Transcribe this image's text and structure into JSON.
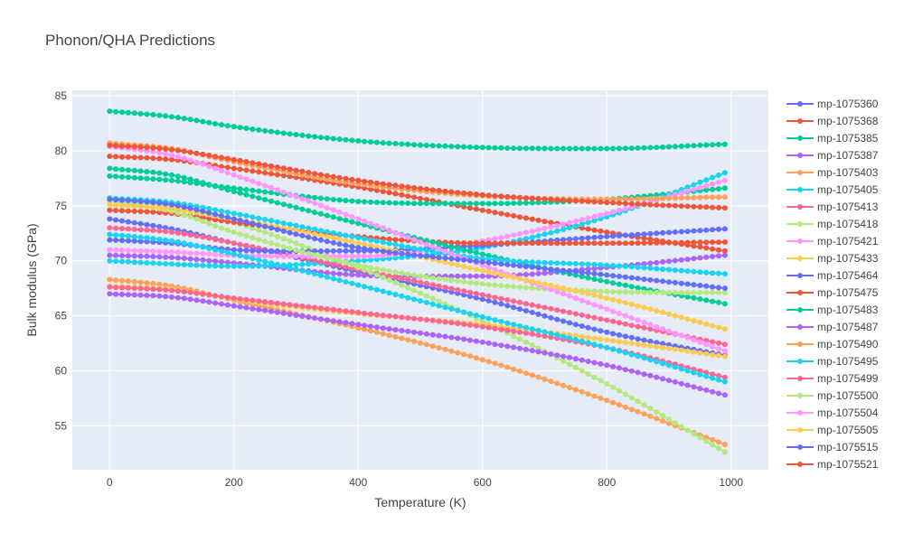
{
  "chart_data": {
    "type": "line",
    "title": "Phonon/QHA Predictions",
    "xlabel": "Temperature (K)",
    "ylabel": "Bulk modulus (GPa)",
    "xlim": [
      -60,
      1060
    ],
    "ylim": [
      51,
      85.5
    ],
    "xticks": [
      0,
      200,
      400,
      600,
      800,
      1000
    ],
    "xtick_labels": [
      "0",
      "200",
      "400",
      "600",
      "800",
      "1000"
    ],
    "yticks": [
      55,
      60,
      65,
      70,
      75,
      80,
      85
    ],
    "ytick_labels": [
      "55",
      "60",
      "65",
      "70",
      "75",
      "80",
      "85"
    ],
    "grid": true,
    "legend_position": "right",
    "x_start": 0,
    "x_step": 10,
    "num_points": 100,
    "series": [
      {
        "name": "mp-1075360",
        "color": "#636efa",
        "anchors": [
          [
            0,
            73.8
          ],
          [
            100,
            72.9
          ],
          [
            200,
            71.6
          ],
          [
            400,
            69.0
          ],
          [
            600,
            66.5
          ],
          [
            800,
            63.5
          ],
          [
            990,
            61.4
          ]
        ]
      },
      {
        "name": "mp-1075368",
        "color": "#ef553b",
        "anchors": [
          [
            0,
            79.5
          ],
          [
            100,
            79.2
          ],
          [
            200,
            78.4
          ],
          [
            400,
            76.7
          ],
          [
            600,
            74.6
          ],
          [
            800,
            72.6
          ],
          [
            990,
            70.9
          ]
        ]
      },
      {
        "name": "mp-1075385",
        "color": "#00cc96",
        "anchors": [
          [
            0,
            77.7
          ],
          [
            100,
            77.3
          ],
          [
            200,
            76.6
          ],
          [
            400,
            75.4
          ],
          [
            600,
            75.2
          ],
          [
            800,
            75.6
          ],
          [
            990,
            76.6
          ]
        ]
      },
      {
        "name": "mp-1075387",
        "color": "#ab63fa",
        "anchors": [
          [
            0,
            70.5
          ],
          [
            100,
            70.3
          ],
          [
            200,
            69.8
          ],
          [
            400,
            68.7
          ],
          [
            600,
            68.6
          ],
          [
            800,
            69.4
          ],
          [
            990,
            70.5
          ]
        ]
      },
      {
        "name": "mp-1075403",
        "color": "#ffa15a",
        "anchors": [
          [
            0,
            68.3
          ],
          [
            100,
            67.7
          ],
          [
            200,
            66.4
          ],
          [
            400,
            63.9
          ],
          [
            600,
            61.0
          ],
          [
            800,
            57.3
          ],
          [
            990,
            53.3
          ]
        ]
      },
      {
        "name": "mp-1075405",
        "color": "#19d3f3",
        "anchors": [
          [
            0,
            70.0
          ],
          [
            100,
            69.7
          ],
          [
            200,
            69.5
          ],
          [
            400,
            70.0
          ],
          [
            600,
            71.2
          ],
          [
            800,
            74.0
          ],
          [
            990,
            78.0
          ]
        ]
      },
      {
        "name": "mp-1075413",
        "color": "#ff6692",
        "anchors": [
          [
            0,
            73.0
          ],
          [
            100,
            72.6
          ],
          [
            200,
            71.6
          ],
          [
            400,
            69.2
          ],
          [
            600,
            66.9
          ],
          [
            800,
            64.6
          ],
          [
            990,
            62.4
          ]
        ]
      },
      {
        "name": "mp-1075418",
        "color": "#b6e880",
        "anchors": [
          [
            0,
            75.4
          ],
          [
            100,
            74.9
          ],
          [
            200,
            73.5
          ],
          [
            400,
            69.4
          ],
          [
            600,
            64.5
          ],
          [
            800,
            58.8
          ],
          [
            990,
            52.6
          ]
        ]
      },
      {
        "name": "mp-1075421",
        "color": "#ff97ff",
        "anchors": [
          [
            0,
            71.0
          ],
          [
            100,
            70.8
          ],
          [
            200,
            70.5
          ],
          [
            400,
            70.4
          ],
          [
            600,
            71.8
          ],
          [
            800,
            74.3
          ],
          [
            990,
            77.3
          ]
        ]
      },
      {
        "name": "mp-1075433",
        "color": "#fecb52",
        "anchors": [
          [
            0,
            67.7
          ],
          [
            100,
            67.4
          ],
          [
            200,
            66.5
          ],
          [
            400,
            65.2
          ],
          [
            600,
            64.2
          ],
          [
            800,
            62.8
          ],
          [
            990,
            61.3
          ]
        ]
      },
      {
        "name": "mp-1075464",
        "color": "#636efa",
        "anchors": [
          [
            0,
            71.9
          ],
          [
            100,
            71.6
          ],
          [
            200,
            71.0
          ],
          [
            400,
            70.9
          ],
          [
            600,
            71.4
          ],
          [
            800,
            72.2
          ],
          [
            990,
            72.9
          ]
        ]
      },
      {
        "name": "mp-1075475",
        "color": "#ef553b",
        "anchors": [
          [
            0,
            74.6
          ],
          [
            100,
            74.3
          ],
          [
            200,
            73.5
          ],
          [
            400,
            72.2
          ],
          [
            600,
            71.6
          ],
          [
            800,
            71.6
          ],
          [
            990,
            71.7
          ]
        ]
      },
      {
        "name": "mp-1075483",
        "color": "#00cc96",
        "anchors": [
          [
            0,
            78.4
          ],
          [
            100,
            77.8
          ],
          [
            200,
            76.3
          ],
          [
            400,
            73.4
          ],
          [
            600,
            70.6
          ],
          [
            800,
            68.1
          ],
          [
            990,
            66.1
          ]
        ]
      },
      {
        "name": "mp-1075487",
        "color": "#ab63fa",
        "anchors": [
          [
            0,
            67.0
          ],
          [
            100,
            66.7
          ],
          [
            200,
            65.9
          ],
          [
            400,
            64.2
          ],
          [
            600,
            62.6
          ],
          [
            800,
            60.5
          ],
          [
            990,
            57.8
          ]
        ]
      },
      {
        "name": "mp-1075490",
        "color": "#ffa15a",
        "anchors": [
          [
            0,
            80.7
          ],
          [
            100,
            80.2
          ],
          [
            200,
            79.0
          ],
          [
            400,
            77.0
          ],
          [
            600,
            75.9
          ],
          [
            800,
            75.6
          ],
          [
            990,
            75.8
          ]
        ]
      },
      {
        "name": "mp-1075495",
        "color": "#19d3f3",
        "anchors": [
          [
            0,
            75.7
          ],
          [
            100,
            75.3
          ],
          [
            200,
            74.3
          ],
          [
            400,
            72.1
          ],
          [
            600,
            70.2
          ],
          [
            800,
            69.6
          ],
          [
            990,
            68.8
          ]
        ]
      },
      {
        "name": "mp-1075499",
        "color": "#ff6692",
        "anchors": [
          [
            0,
            67.6
          ],
          [
            100,
            67.3
          ],
          [
            200,
            66.6
          ],
          [
            400,
            65.3
          ],
          [
            600,
            64.0
          ],
          [
            800,
            62.1
          ],
          [
            990,
            59.4
          ]
        ]
      },
      {
        "name": "mp-1075500",
        "color": "#b6e880",
        "anchors": [
          [
            0,
            75.4
          ],
          [
            100,
            74.5
          ],
          [
            200,
            72.6
          ],
          [
            400,
            69.6
          ],
          [
            600,
            67.9
          ],
          [
            800,
            67.2
          ],
          [
            990,
            67.1
          ]
        ]
      },
      {
        "name": "mp-1075504",
        "color": "#ff97ff",
        "anchors": [
          [
            0,
            80.4
          ],
          [
            100,
            79.6
          ],
          [
            200,
            77.8
          ],
          [
            400,
            73.8
          ],
          [
            600,
            69.6
          ],
          [
            800,
            65.6
          ],
          [
            990,
            61.8
          ]
        ]
      },
      {
        "name": "mp-1075505",
        "color": "#fecb52",
        "anchors": [
          [
            0,
            75.1
          ],
          [
            100,
            74.7
          ],
          [
            200,
            73.8
          ],
          [
            400,
            71.6
          ],
          [
            600,
            69.1
          ],
          [
            800,
            66.6
          ],
          [
            990,
            63.8
          ]
        ]
      },
      {
        "name": "mp-1075515",
        "color": "#636efa",
        "anchors": [
          [
            0,
            75.6
          ],
          [
            100,
            75.1
          ],
          [
            200,
            73.8
          ],
          [
            400,
            71.2
          ],
          [
            600,
            69.9
          ],
          [
            800,
            68.7
          ],
          [
            990,
            67.5
          ]
        ]
      },
      {
        "name": "mp-1075521",
        "color": "#ef553b",
        "anchors": [
          [
            0,
            80.5
          ],
          [
            100,
            80.1
          ],
          [
            200,
            79.2
          ],
          [
            400,
            77.3
          ],
          [
            600,
            76.0
          ],
          [
            800,
            75.3
          ],
          [
            990,
            74.8
          ]
        ]
      },
      {
        "name": "",
        "color": "#00cc96",
        "anchors": [
          [
            0,
            83.6
          ],
          [
            100,
            83.1
          ],
          [
            200,
            82.2
          ],
          [
            400,
            80.9
          ],
          [
            600,
            80.3
          ],
          [
            800,
            80.2
          ],
          [
            990,
            80.6
          ]
        ]
      },
      {
        "name": "",
        "color": "#19d3f3",
        "anchors": [
          [
            0,
            72.4
          ],
          [
            100,
            71.8
          ],
          [
            200,
            70.6
          ],
          [
            400,
            67.8
          ],
          [
            600,
            64.9
          ],
          [
            800,
            62.1
          ],
          [
            990,
            59.0
          ]
        ]
      }
    ]
  }
}
